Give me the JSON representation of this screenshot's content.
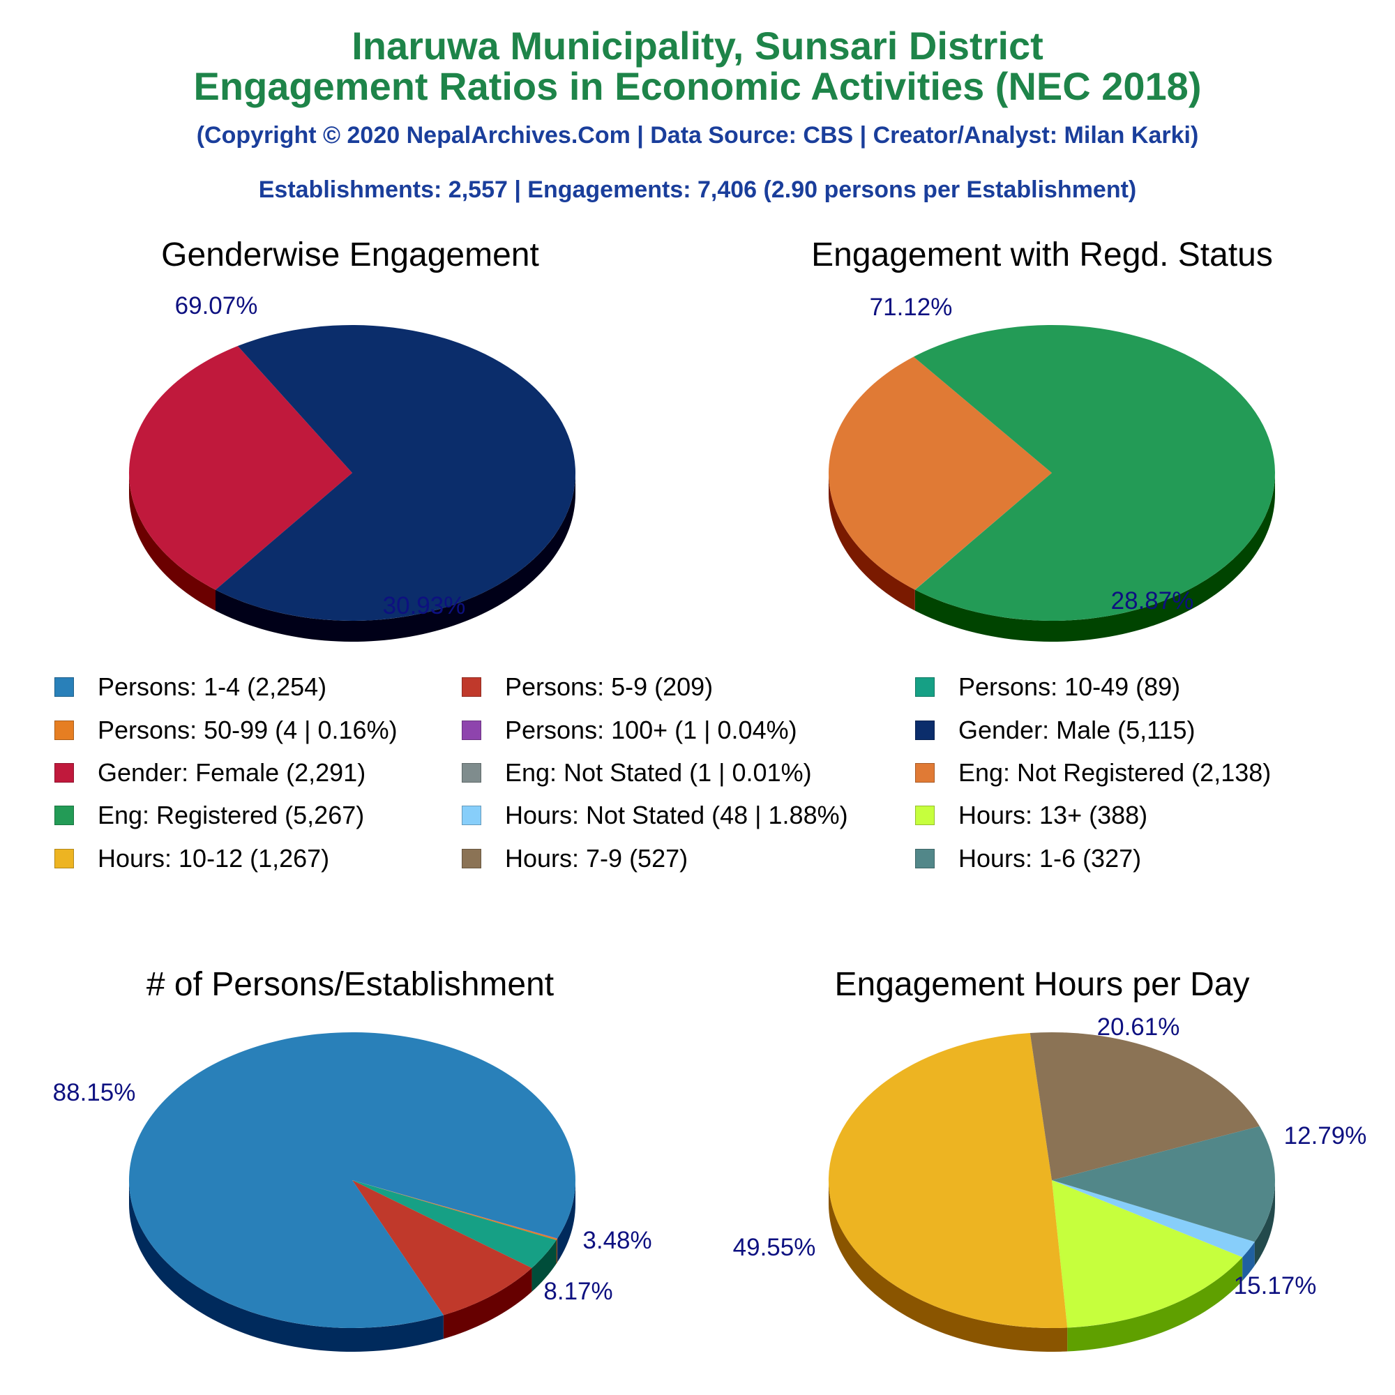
{
  "title": {
    "line1": "Inaruwa Municipality, Sunsari District",
    "line2": "Engagement Ratios in Economic Activities (NEC 2018)"
  },
  "subtitle": "(Copyright © 2020 NepalArchives.Com | Data Source: CBS | Creator/Analyst: Milan Karki)",
  "summary": "Establishments: 2,557 | Engagements: 7,406 (2.90 persons per Establishment)",
  "legend": [
    {
      "label": "Persons: 1-4 (2,254)",
      "color": "#2980b9"
    },
    {
      "label": "Persons: 5-9 (209)",
      "color": "#c0392b"
    },
    {
      "label": "Persons: 10-49 (89)",
      "color": "#16a085"
    },
    {
      "label": "Persons: 50-99 (4 | 0.16%)",
      "color": "#e67e22"
    },
    {
      "label": "Persons: 100+ (1 | 0.04%)",
      "color": "#8e44ad"
    },
    {
      "label": "Gender: Male (5,115)",
      "color": "#0b2d6b"
    },
    {
      "label": "Gender: Female (2,291)",
      "color": "#c0193c"
    },
    {
      "label": "Eng: Not Stated (1 | 0.01%)",
      "color": "#7f8c8d"
    },
    {
      "label": "Eng: Not Registered (2,138)",
      "color": "#e07a35"
    },
    {
      "label": "Eng: Registered (5,267)",
      "color": "#239b56"
    },
    {
      "label": "Hours: Not Stated (48 | 1.88%)",
      "color": "#87cefa"
    },
    {
      "label": "Hours: 13+ (388)",
      "color": "#c6ff3d"
    },
    {
      "label": "Hours: 10-12 (1,267)",
      "color": "#edb422"
    },
    {
      "label": "Hours: 7-9 (527)",
      "color": "#8b7355"
    },
    {
      "label": "Hours: 1-6 (327)",
      "color": "#528789"
    }
  ],
  "chart_data": [
    {
      "type": "pie",
      "title": "Genderwise Engagement",
      "slices": [
        {
          "name": "Gender: Female",
          "value": 2291,
          "pct_label": "30.93%",
          "color": "#c0193c",
          "side_color": "#6b0000"
        },
        {
          "name": "Gender: Male",
          "value": 5115,
          "pct_label": "69.07%",
          "color": "#0b2d6b",
          "side_color": "#000018"
        }
      ]
    },
    {
      "type": "pie",
      "title": "Engagement with Regd. Status",
      "slices": [
        {
          "name": "Eng: Not Stated",
          "value": 1,
          "pct_label": "",
          "color": "#7f8c8d",
          "side_color": "#3d4444"
        },
        {
          "name": "Eng: Not Registered",
          "value": 2138,
          "pct_label": "28.87%",
          "color": "#e07a35",
          "side_color": "#7a1a00"
        },
        {
          "name": "Eng: Registered",
          "value": 5267,
          "pct_label": "71.12%",
          "color": "#239b56",
          "side_color": "#004400"
        }
      ]
    },
    {
      "type": "pie",
      "title": "# of Persons/Establishment",
      "slices": [
        {
          "name": "Persons: 100+",
          "value": 1,
          "pct_label": "",
          "color": "#8e44ad",
          "side_color": "#3a0f55"
        },
        {
          "name": "Persons: 50-99",
          "value": 4,
          "pct_label": "",
          "color": "#e67e22",
          "side_color": "#7a3500"
        },
        {
          "name": "Persons: 10-49",
          "value": 89,
          "pct_label": "3.48%",
          "color": "#16a085",
          "side_color": "#004d3a"
        },
        {
          "name": "Persons: 5-9",
          "value": 209,
          "pct_label": "8.17%",
          "color": "#c0392b",
          "side_color": "#660000"
        },
        {
          "name": "Persons: 1-4",
          "value": 2254,
          "pct_label": "88.15%",
          "color": "#2980b9",
          "side_color": "#002a5c"
        }
      ]
    },
    {
      "type": "pie",
      "title": "Engagement Hours per Day",
      "slices": [
        {
          "name": "Hours: Not Stated",
          "value": 48,
          "pct_label": "",
          "color": "#87cefa",
          "side_color": "#2060a0"
        },
        {
          "name": "Hours: 13+",
          "value": 388,
          "pct_label": "15.17%",
          "color": "#c6ff3d",
          "side_color": "#5fa000"
        },
        {
          "name": "Hours: 10-12",
          "value": 1267,
          "pct_label": "49.55%",
          "color": "#edb422",
          "side_color": "#8a5500"
        },
        {
          "name": "Hours: 7-9",
          "value": 527,
          "pct_label": "20.61%",
          "color": "#8b7355",
          "side_color": "#4a3a22"
        },
        {
          "name": "Hours: 1-6",
          "value": 327,
          "pct_label": "12.79%",
          "color": "#528789",
          "side_color": "#234a4c"
        }
      ]
    }
  ]
}
